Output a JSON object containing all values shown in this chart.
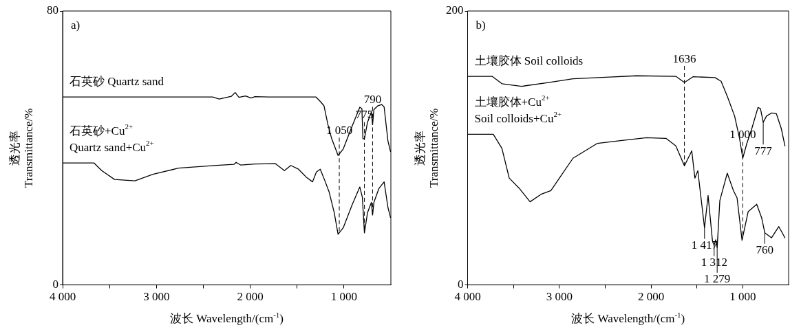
{
  "chart_data": [
    {
      "type": "line",
      "xlabel": "波长 Wavelength/(cm$^{-1}$)",
      "ylabel": "透光率\nTransmittance/%",
      "xlim": [
        4000,
        500
      ],
      "ylim": [
        0,
        80
      ],
      "xticks": [
        {
          "value": 4000,
          "label": "4 000"
        },
        {
          "value": 3500,
          "label": null
        },
        {
          "value": 3000,
          "label": "3 000"
        },
        {
          "value": 2500,
          "label": null
        },
        {
          "value": 2000,
          "label": "2 000"
        },
        {
          "value": 1500,
          "label": null
        },
        {
          "value": 1000,
          "label": "1 000"
        }
      ],
      "yticks": [
        0,
        80
      ],
      "grid": false,
      "legend": false,
      "marker": "none",
      "line_style": "solid",
      "series": [
        {
          "name": "石英砂 Quartz sand",
          "color": "#000000",
          "x": [
            4000,
            3000,
            2400,
            2330,
            2200,
            2160,
            2120,
            2050,
            1990,
            1950,
            1800,
            1300,
            1250,
            1213,
            1171,
            1131,
            1063,
            1008,
            913,
            831,
            809,
            798,
            782,
            749,
            708,
            695,
            681,
            640,
            599,
            572,
            531,
            504
          ],
          "values": [
            54.9,
            54.9,
            54.9,
            54.3,
            55.1,
            56.2,
            54.8,
            55.2,
            54.6,
            55.0,
            54.9,
            54.9,
            53.5,
            52.3,
            46.8,
            42.7,
            37.8,
            39.7,
            46.4,
            51.9,
            51.5,
            42.7,
            42.7,
            47.5,
            50.5,
            46.8,
            51.2,
            52.3,
            52.7,
            52.0,
            42.0,
            39.0
          ]
        },
        {
          "name": "石英砂+Cu$^{2+}$\nQuartz sand+Cu$^{2+}$",
          "color": "#000000",
          "x": [
            4000,
            3665,
            3583,
            3447,
            3229,
            3038,
            2766,
            2357,
            2174,
            2150,
            2100,
            1948,
            1730,
            1635,
            1567,
            1485,
            1403,
            1335,
            1294,
            1253,
            1199,
            1158,
            1104,
            1063,
            1008,
            913,
            831,
            804,
            782,
            749,
            708,
            695,
            681,
            627,
            572,
            531,
            504
          ],
          "values": [
            35.6,
            35.6,
            33.4,
            30.8,
            30.4,
            32.3,
            34.1,
            34.9,
            35.2,
            35.8,
            35.0,
            35.3,
            35.4,
            33.4,
            34.9,
            33.8,
            31.5,
            30.1,
            33.0,
            33.8,
            30.1,
            27.1,
            21.1,
            14.8,
            16.7,
            23.4,
            28.6,
            25.6,
            15.2,
            21.1,
            24.1,
            20.4,
            24.1,
            28.2,
            30.1,
            22.6,
            19.7
          ]
        }
      ],
      "annotations": [
        "a)",
        {
          "text": "1 050",
          "x": 1050,
          "y": 38.2
        },
        {
          "text": "775",
          "x": 782,
          "y": 42.7
        },
        {
          "text": "790",
          "x": 695,
          "y": 46.8
        }
      ]
    },
    {
      "type": "line",
      "xlabel": "波长 Wavelength/(cm$^{-1}$)",
      "ylabel": "透光率\nTransmittance/%",
      "xlim": [
        4000,
        500
      ],
      "ylim": [
        0,
        200
      ],
      "xticks": [
        {
          "value": 4000,
          "label": "4 000"
        },
        {
          "value": 3500,
          "label": null
        },
        {
          "value": 3000,
          "label": "3 000"
        },
        {
          "value": 2500,
          "label": null
        },
        {
          "value": 2000,
          "label": "2 000"
        },
        {
          "value": 1500,
          "label": null
        },
        {
          "value": 1000,
          "label": "1 000"
        }
      ],
      "yticks": [
        0,
        200
      ],
      "grid": false,
      "legend": false,
      "marker": "none",
      "line_style": "solid",
      "series": [
        {
          "name": "土壤胶体 Soil colloids",
          "color": "#000000",
          "x": [
            4000,
            3733,
            3626,
            3412,
            3119,
            2851,
            2451,
            2157,
            1730,
            1636,
            1543,
            1303,
            1236,
            1169,
            1089,
            1035,
            1000,
            955,
            901,
            834,
            807,
            777,
            741,
            687,
            634,
            580,
            540
          ],
          "values": [
            152.3,
            152.3,
            146.9,
            145.0,
            147.8,
            150.5,
            151.8,
            152.7,
            152.3,
            147.8,
            152.0,
            151.4,
            148.7,
            137.8,
            123.3,
            107.0,
            92.5,
            103.4,
            114.2,
            129.6,
            128.7,
            118.8,
            123.3,
            125.5,
            125.1,
            114.2,
            101.5
          ]
        },
        {
          "name": "土壤胶体+Cu$^{2+}$\nSoil colloids+Cu$^{2+}$",
          "color": "#000000",
          "x": [
            4000,
            3720,
            3626,
            3546,
            3439,
            3319,
            3199,
            3092,
            2851,
            2584,
            2317,
            2050,
            1837,
            1730,
            1636,
            1556,
            1522,
            1490,
            1417,
            1378,
            1330,
            1312,
            1295,
            1279,
            1250,
            1169,
            1102,
            1062,
            1008,
            941,
            848,
            794,
            760,
            687,
            607,
            540
          ],
          "values": [
            110.0,
            110.0,
            99.7,
            78.0,
            70.7,
            60.7,
            66.2,
            68.9,
            92.5,
            103.4,
            105.5,
            107.5,
            107.0,
            101.5,
            87.0,
            97.9,
            78.0,
            83.4,
            41.7,
            65.3,
            32.0,
            29.0,
            33.0,
            27.2,
            61.6,
            81.6,
            68.9,
            63.5,
            32.6,
            53.5,
            58.9,
            49.0,
            38.1,
            34.4,
            42.6,
            34.4
          ]
        }
      ],
      "annotations": [
        "b)",
        {
          "text": "1636",
          "x": 1636,
          "y": 147.8
        },
        {
          "text": "1 000",
          "x": 1000,
          "y": 92.5
        },
        {
          "text": "777",
          "x": 777,
          "y": 118.8
        },
        {
          "text": "1 417",
          "x": 1417,
          "y": 41.7
        },
        {
          "text": "1 312",
          "x": 1312,
          "y": 29.0
        },
        {
          "text": "1 279",
          "x": 1279,
          "y": 27.2
        },
        {
          "text": "760",
          "x": 760,
          "y": 38.1
        }
      ]
    }
  ]
}
